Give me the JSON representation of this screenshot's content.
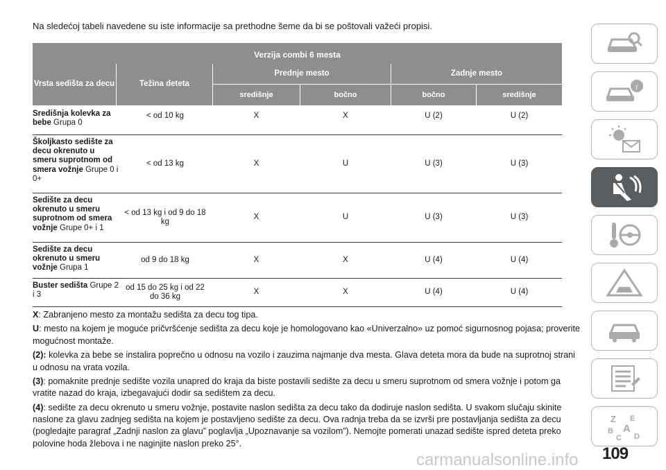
{
  "intro": "Na sledećoj tabeli navedene su iste informacije sa prethodne šeme da bi se poštovali važeći propisi.",
  "table": {
    "caption": "Verzija combi 6 mesta",
    "col_seat_type": "Vrsta sedišta za decu",
    "col_weight": "Težina deteta",
    "group_front": "Prednje mesto",
    "group_rear": "Zadnje mesto",
    "sub_front_center": "središnje",
    "sub_front_side": "bočno",
    "sub_rear_side": "bočno",
    "sub_rear_center": "središnje",
    "rows": [
      {
        "name": "Središnja kolevka za bebe",
        "group": "Grupa 0",
        "weight": "< od 10 kg",
        "front_center": "X",
        "front_side": "X",
        "rear_side": "U (2)",
        "rear_center": "U (2)"
      },
      {
        "name": "Školjkasto sedište za decu okrenuto u smeru suprotnom od smera vožnje",
        "group": "Grupe 0 i 0+",
        "weight": "< od 13 kg",
        "front_center": "X",
        "front_side": "U",
        "rear_side": "U (3)",
        "rear_center": "U (3)"
      },
      {
        "name": "Sedište za decu okrenuto u smeru suprotnom od smera vožnje",
        "group": "Grupe 0+ i 1",
        "weight": "< od 13 kg i od 9 do 18 kg",
        "front_center": "X",
        "front_side": "U",
        "rear_side": "U (3)",
        "rear_center": "U (3)"
      },
      {
        "name": "Sedište za decu okrenuto u smeru vožnje",
        "group": "Grupa 1",
        "weight": "od 9 do 18 kg",
        "front_center": "X",
        "front_side": "X",
        "rear_side": "U (4)",
        "rear_center": "U (4)"
      },
      {
        "name": "Buster sedišta",
        "group": "Grupe 2 i 3",
        "weight": "od 15 do 25 kg i od 22 do 36 kg",
        "front_center": "X",
        "front_side": "X",
        "rear_side": "U (4)",
        "rear_center": "U (4)"
      }
    ]
  },
  "notes": [
    {
      "key": "X",
      "text": ": Zabranjeno mesto za montažu sedišta za decu tog tipa."
    },
    {
      "key": "U",
      "text": ": mesto na kojem je moguće pričvršćenje sedišta za decu koje je homologovano kao «Univerzalno» uz pomoć sigurnosnog pojasa; proverite mogućnost montaže."
    },
    {
      "key": "(2):",
      "text": " kolevka za bebe se instalira poprečno u odnosu na vozilo i zauzima najmanje dva mesta. Glava deteta mora da bude na suprotnoj strani u odnosu na vrata vozila."
    },
    {
      "key": "(3)",
      "text": ": pomaknite prednje sedište vozila unapred do kraja da biste postavili sedište za decu u smeru suprotnom od smera vožnje i potom ga vratite nazad do kraja, izbegavajući dodir sa sedištem za decu."
    },
    {
      "key": "(4)",
      "text": ": sedište za decu okrenuto u smeru vožnje, postavite naslon sedišta za decu tako da dodiruje naslon sedišta. U svakom slučaju skinite naslone za glavu zadnjeg sedišta na kojem je postavljeno sedište za decu. Ova radnja treba da se izvrši pre postavljanja sedišta za decu (pogledajte paragraf „Zadnji naslon za glavu” poglavlja „Upoznavanje sa vozilom”). Nemojte pomerati unazad sedište ispred deteta preko polovine hoda žlebova i ne naginjite naslon preko 25°."
    }
  ],
  "page_number": "109",
  "watermark": "carmanualsonline.info",
  "sidebar_icons": [
    "car-search-icon",
    "car-info-icon",
    "warning-lights-icon",
    "seat-airbag-icon",
    "key-steering-icon",
    "roadside-triangle-icon",
    "car-maintenance-icon",
    "specs-list-icon",
    "alphabet-index-icon"
  ],
  "sidebar_active_index": 3
}
